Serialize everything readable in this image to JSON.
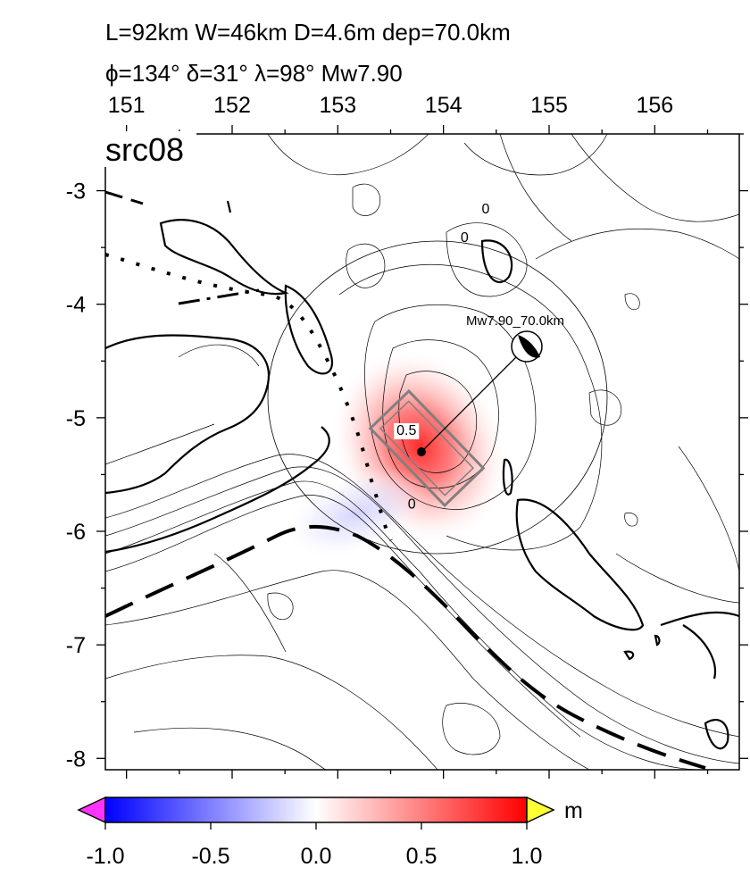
{
  "header": {
    "line1": "L=92km W=46km D=4.6m dep=70.0km",
    "line2": "ϕ=134° δ=31° λ=98° Mw7.90"
  },
  "map": {
    "panel_label": "src08",
    "lon_ticks": [
      "151",
      "152",
      "153",
      "154",
      "155",
      "156"
    ],
    "lat_ticks": [
      "-3",
      "-4",
      "-5",
      "-6",
      "-7",
      "-8"
    ],
    "lon_range": [
      150.8,
      156.8
    ],
    "lat_range": [
      -8.1,
      -2.5
    ],
    "epicenter": {
      "lon": 153.8,
      "lat": -5.1
    },
    "mechanism": {
      "lon": 154.8,
      "lat": -4.1,
      "label": "Mw7.90_70.0km"
    },
    "contour_labels": [
      {
        "text": "0",
        "lon": 154.4,
        "lat": -3.2
      },
      {
        "text": "0",
        "lon": 154.2,
        "lat": -3.45
      },
      {
        "text": "0.5",
        "lon": 153.65,
        "lat": -5.15
      },
      {
        "text": "0",
        "lon": 153.7,
        "lat": -5.8
      }
    ]
  },
  "colorbar": {
    "unit": "m",
    "ticks": [
      "-1.0",
      "-0.5",
      "0.0",
      "0.5",
      "1.0"
    ],
    "range": [
      -1.0,
      1.0
    ],
    "colors": {
      "min": "#0000ff",
      "mid": "#ffffff",
      "max": "#ff0000",
      "under": "#ff33ff",
      "over": "#ffff33"
    }
  }
}
